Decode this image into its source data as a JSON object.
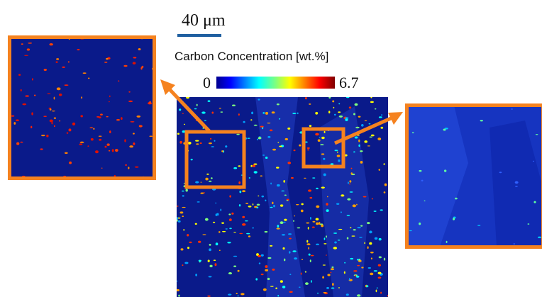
{
  "scale_bar": {
    "label": "40 μm"
  },
  "colorbar": {
    "title": "Carbon Concentration [wt.%]",
    "min": 0,
    "max": 6.7
  }
}
